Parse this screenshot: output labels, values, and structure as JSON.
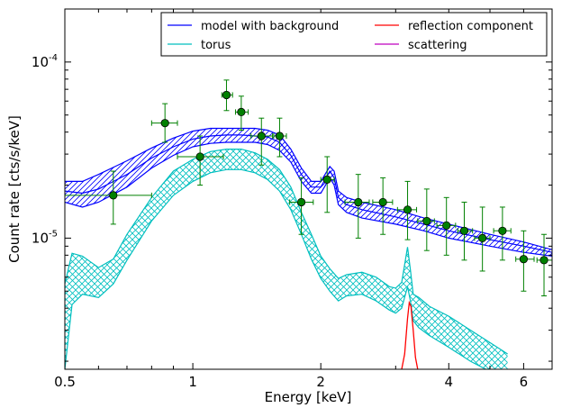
{
  "chart_data": {
    "type": "line",
    "xlabel": "Energy [keV]",
    "ylabel": "Count rate [cts/s/keV]",
    "xscale": "log",
    "yscale": "log",
    "xlim": [
      0.5,
      7.0
    ],
    "ylim": [
      1.8e-06,
      0.0002
    ],
    "x_ticks": [
      {
        "value": 0.5,
        "label": "0.5"
      },
      {
        "value": 1,
        "label": "1"
      },
      {
        "value": 2,
        "label": "2"
      },
      {
        "value": 4,
        "label": "4"
      },
      {
        "value": 6,
        "label": "6"
      }
    ],
    "y_ticks": [
      {
        "value": 1e-05,
        "base": "10",
        "exp": "-5"
      },
      {
        "value": 0.0001,
        "base": "10",
        "exp": "-4"
      }
    ],
    "legend": {
      "placement": "top-right",
      "entries": [
        {
          "label": "model with background",
          "color": "#0000ff"
        },
        {
          "label": "reflection component",
          "color": "#ff0000"
        },
        {
          "label": "torus",
          "color": "#00bfbf"
        },
        {
          "label": "scattering",
          "color": "#bf00bf"
        }
      ]
    },
    "data_points": [
      {
        "x": 0.65,
        "y": 1.75e-05,
        "xlo": 0.5,
        "xhi": 0.8,
        "ylo": 1.2e-05,
        "yhi": 2.4e-05
      },
      {
        "x": 0.86,
        "y": 4.5e-05,
        "xlo": 0.8,
        "xhi": 0.92,
        "ylo": 3.5e-05,
        "yhi": 5.8e-05
      },
      {
        "x": 1.04,
        "y": 2.9e-05,
        "xlo": 0.92,
        "xhi": 1.18,
        "ylo": 2e-05,
        "yhi": 3.8e-05
      },
      {
        "x": 1.2,
        "y": 6.5e-05,
        "xlo": 1.17,
        "xhi": 1.24,
        "ylo": 5.3e-05,
        "yhi": 7.9e-05
      },
      {
        "x": 1.3,
        "y": 5.2e-05,
        "xlo": 1.26,
        "xhi": 1.35,
        "ylo": 4.1e-05,
        "yhi": 6.4e-05
      },
      {
        "x": 1.45,
        "y": 3.8e-05,
        "xlo": 1.37,
        "xhi": 1.54,
        "ylo": 2.6e-05,
        "yhi": 4.8e-05
      },
      {
        "x": 1.6,
        "y": 3.8e-05,
        "xlo": 1.55,
        "xhi": 1.66,
        "ylo": 2.9e-05,
        "yhi": 4.8e-05
      },
      {
        "x": 1.8,
        "y": 1.6e-05,
        "xlo": 1.69,
        "xhi": 1.92,
        "ylo": 1.05e-05,
        "yhi": 2.2e-05
      },
      {
        "x": 2.07,
        "y": 2.15e-05,
        "xlo": 2.0,
        "xhi": 2.15,
        "ylo": 1.4e-05,
        "yhi": 2.9e-05
      },
      {
        "x": 2.45,
        "y": 1.6e-05,
        "xlo": 2.28,
        "xhi": 2.6,
        "ylo": 1e-05,
        "yhi": 2.3e-05
      },
      {
        "x": 2.8,
        "y": 1.6e-05,
        "xlo": 2.65,
        "xhi": 2.95,
        "ylo": 1.05e-05,
        "yhi": 2.2e-05
      },
      {
        "x": 3.2,
        "y": 1.45e-05,
        "xlo": 3.03,
        "xhi": 3.36,
        "ylo": 9.8e-06,
        "yhi": 2.1e-05
      },
      {
        "x": 3.55,
        "y": 1.25e-05,
        "xlo": 3.38,
        "xhi": 3.7,
        "ylo": 8.5e-06,
        "yhi": 1.9e-05
      },
      {
        "x": 3.95,
        "y": 1.18e-05,
        "xlo": 3.75,
        "xhi": 4.15,
        "ylo": 8e-06,
        "yhi": 1.7e-05
      },
      {
        "x": 4.35,
        "y": 1.1e-05,
        "xlo": 4.2,
        "xhi": 4.55,
        "ylo": 7.5e-06,
        "yhi": 1.6e-05
      },
      {
        "x": 4.8,
        "y": 1e-05,
        "xlo": 4.6,
        "xhi": 5.0,
        "ylo": 6.5e-06,
        "yhi": 1.5e-05
      },
      {
        "x": 5.35,
        "y": 1.1e-05,
        "xlo": 5.1,
        "xhi": 5.6,
        "ylo": 7.5e-06,
        "yhi": 1.5e-05
      },
      {
        "x": 6.0,
        "y": 7.6e-06,
        "xlo": 5.75,
        "xhi": 6.35,
        "ylo": 5e-06,
        "yhi": 1.1e-05
      },
      {
        "x": 6.7,
        "y": 7.5e-06,
        "xlo": 6.45,
        "xhi": 7.0,
        "ylo": 4.7e-06,
        "yhi": 1.05e-05
      }
    ],
    "model": {
      "color": "#0000ff",
      "x": [
        0.5,
        0.55,
        0.6,
        0.7,
        0.8,
        0.9,
        1.0,
        1.1,
        1.2,
        1.3,
        1.4,
        1.5,
        1.6,
        1.7,
        1.8,
        1.9,
        2.0,
        2.1,
        2.15,
        2.2,
        2.3,
        2.5,
        3.0,
        3.5,
        4.0,
        5.0,
        6.0,
        7.0
      ],
      "mid": [
        1.85e-05,
        1.8e-05,
        1.9e-05,
        2.3e-05,
        2.85e-05,
        3.3e-05,
        3.65e-05,
        3.8e-05,
        3.85e-05,
        3.85e-05,
        3.8e-05,
        3.75e-05,
        3.5e-05,
        2.95e-05,
        2.3e-05,
        1.95e-05,
        1.95e-05,
        2.4e-05,
        2.2e-05,
        1.7e-05,
        1.55e-05,
        1.45e-05,
        1.32e-05,
        1.2e-05,
        1.1e-05,
        9.8e-06,
        9e-06,
        8.3e-06
      ],
      "lo": [
        1.6e-05,
        1.5e-05,
        1.6e-05,
        1.95e-05,
        2.5e-05,
        2.95e-05,
        3.3e-05,
        3.45e-05,
        3.5e-05,
        3.5e-05,
        3.5e-05,
        3.4e-05,
        3.15e-05,
        2.7e-05,
        2.1e-05,
        1.8e-05,
        1.8e-05,
        2.2e-05,
        2e-05,
        1.55e-05,
        1.4e-05,
        1.3e-05,
        1.2e-05,
        1.1e-05,
        1e-05,
        9e-06,
        8.3e-06,
        7.9e-06
      ],
      "hi": [
        2.1e-05,
        2.1e-05,
        2.3e-05,
        2.75e-05,
        3.25e-05,
        3.7e-05,
        4.05e-05,
        4.2e-05,
        4.2e-05,
        4.2e-05,
        4.2e-05,
        4.1e-05,
        3.85e-05,
        3.2e-05,
        2.5e-05,
        2.1e-05,
        2.1e-05,
        2.55e-05,
        2.4e-05,
        1.85e-05,
        1.7e-05,
        1.6e-05,
        1.45e-05,
        1.3e-05,
        1.2e-05,
        1.05e-05,
        9.5e-06,
        8.6e-06
      ]
    },
    "torus": {
      "color": "#00bfbf",
      "x": [
        0.5,
        0.52,
        0.55,
        0.6,
        0.65,
        0.7,
        0.8,
        0.9,
        1.0,
        1.1,
        1.2,
        1.3,
        1.4,
        1.5,
        1.6,
        1.7,
        1.8,
        1.9,
        2.0,
        2.1,
        2.2,
        2.3,
        2.5,
        2.7,
        2.9,
        3.0,
        3.1,
        3.2,
        3.25,
        3.3,
        3.4,
        3.6,
        4.0,
        4.5,
        5.0,
        5.5
      ],
      "lo": [
        1.8e-06,
        4.2e-06,
        4.8e-06,
        4.6e-06,
        5.5e-06,
        7.5e-06,
        1.25e-05,
        1.75e-05,
        2.1e-05,
        2.35e-05,
        2.45e-05,
        2.45e-05,
        2.35e-05,
        2.15e-05,
        1.85e-05,
        1.45e-05,
        1.05e-05,
        7.6e-06,
        5.9e-06,
        5e-06,
        4.4e-06,
        4.7e-06,
        4.8e-06,
        4.4e-06,
        3.9e-06,
        3.75e-06,
        4e-06,
        5.3e-06,
        4.4e-06,
        3.4e-06,
        3.1e-06,
        2.8e-06,
        2.4e-06,
        2e-06,
        1.75e-06,
        1.55e-06
      ],
      "hi": [
        5.5e-06,
        8.2e-06,
        7.9e-06,
        6.8e-06,
        7.6e-06,
        1.05e-05,
        1.7e-05,
        2.4e-05,
        2.8e-05,
        3.1e-05,
        3.2e-05,
        3.2e-05,
        3.05e-05,
        2.8e-05,
        2.45e-05,
        1.95e-05,
        1.4e-05,
        1.05e-05,
        7.9e-06,
        6.7e-06,
        5.9e-06,
        6.2e-06,
        6.4e-06,
        6e-06,
        5.3e-06,
        5.2e-06,
        5.6e-06,
        8.9e-06,
        6.6e-06,
        4.8e-06,
        4.6e-06,
        4.1e-06,
        3.6e-06,
        3e-06,
        2.55e-06,
        2.2e-06
      ]
    },
    "reflection": {
      "color": "#ff0000",
      "x": [
        3.1,
        3.15,
        3.2,
        3.23,
        3.26,
        3.3,
        3.34,
        3.38
      ],
      "y": [
        1.8e-06,
        2.2e-06,
        3.5e-06,
        4.3e-06,
        4.1e-06,
        3e-06,
        2.1e-06,
        1.8e-06
      ]
    },
    "data_color": "#008000",
    "grid": false
  }
}
